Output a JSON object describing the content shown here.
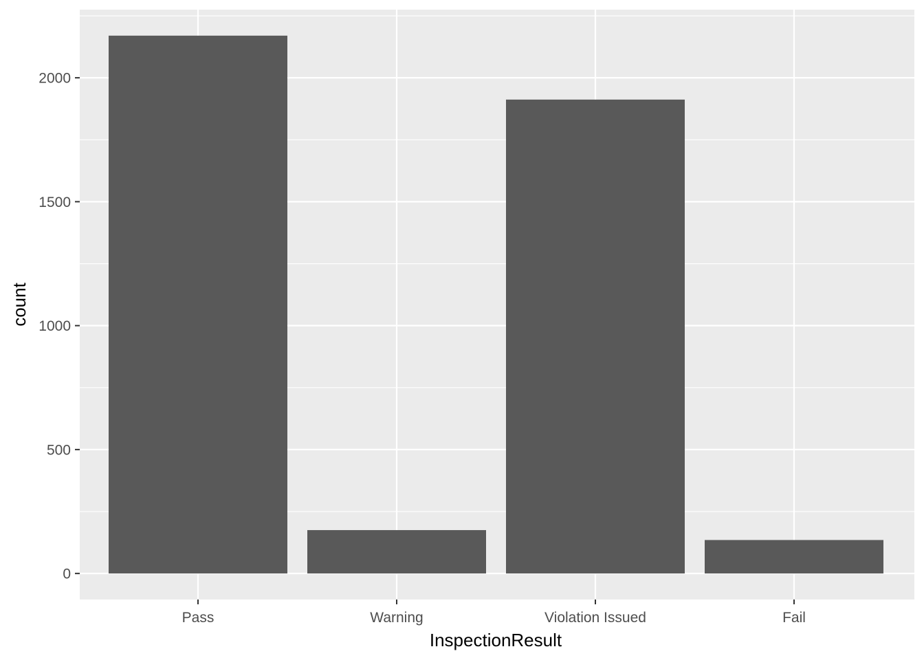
{
  "chart_data": {
    "type": "bar",
    "title": "",
    "xlabel": "InspectionResult",
    "ylabel": "count",
    "categories": [
      "Pass",
      "Warning",
      "Violation Issued",
      "Fail"
    ],
    "values": [
      2170,
      175,
      1912,
      135
    ],
    "ylim": [
      -105,
      2275
    ],
    "yticks": [
      0,
      500,
      1000,
      1500,
      2000
    ],
    "ytick_labels": [
      "0",
      "500",
      "1000",
      "1500",
      "2000"
    ],
    "grid": true,
    "legend": "none"
  },
  "colors": {
    "panel_background": "#ebebeb",
    "grid_major": "#ffffff",
    "bar_fill": "#595959",
    "tick_text": "#4d4d4d",
    "tick_mark": "#333333",
    "title_text": "#000000"
  }
}
